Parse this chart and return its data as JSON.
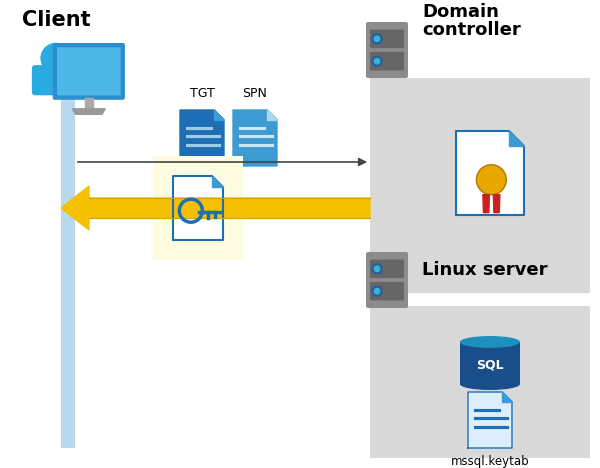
{
  "bg_color": "#ffffff",
  "client_label": "Client",
  "domain_label": "Domain\ncontroller",
  "linux_label": "Linux server",
  "tgt_label": "TGT",
  "spn_label": "SPN",
  "keytab_label": "mssql.keytab",
  "client_bar_color": "#b8d8f0",
  "domain_box_color": "#d9d9d9",
  "linux_box_color": "#d9d9d9",
  "key_box_color": "#fefce0",
  "arrow1_color": "#444444",
  "arrow2_color": "#f5c000",
  "arrow2_edge": "#d4a000",
  "doc_blue": "#1e6eb5",
  "doc_blue2": "#3d9bd4",
  "doc_white": "#ffffff",
  "server_gray": "#8c8c8c",
  "server_dark_gray": "#666666",
  "server_dot_blue": "#2060a0",
  "server_dot_light": "#40b0d0",
  "sql_blue_dark": "#1a4e8a",
  "sql_blue_light": "#1e90c0",
  "cert_gold": "#e8a800",
  "cert_red": "#cc2020",
  "key_doc_bg": "#f0f8ff",
  "key_doc_fold": "#b8d8f0",
  "key_color": "#1e6eb5"
}
